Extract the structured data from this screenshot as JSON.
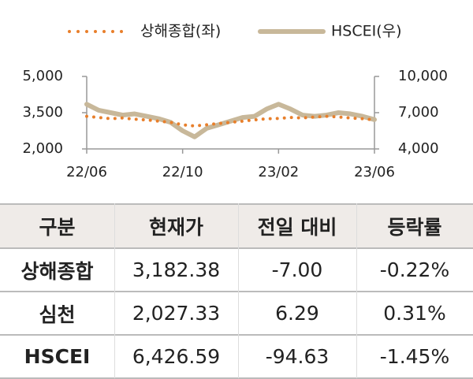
{
  "chart_data": {
    "type": "line",
    "categories": [
      "22/06",
      null,
      null,
      null,
      null,
      null,
      null,
      null,
      "22/10",
      null,
      null,
      null,
      null,
      null,
      null,
      null,
      "23/02",
      null,
      null,
      null,
      null,
      null,
      null,
      null,
      "23/06"
    ],
    "series": [
      {
        "name": "상해종합(좌)",
        "color": "#e87f2b",
        "axis": "y",
        "values": [
          3350,
          3300,
          3250,
          3280,
          3230,
          3200,
          3150,
          3100,
          3000,
          2950,
          3000,
          3050,
          3100,
          3150,
          3200,
          3250,
          3260,
          3300,
          3280,
          3320,
          3350,
          3320,
          3280,
          3250,
          3200
        ]
      },
      {
        "name": "HSCEI(우)",
        "color": "#c8b89a",
        "axis": "y2",
        "values": [
          7700,
          7200,
          7000,
          6800,
          6900,
          6700,
          6500,
          6200,
          5500,
          5000,
          5700,
          6000,
          6300,
          6600,
          6700,
          7300,
          7700,
          7300,
          6800,
          6700,
          6800,
          7000,
          6900,
          6700,
          6426
        ]
      }
    ],
    "ylim": [
      2000,
      5000
    ],
    "yticks": [
      {
        "value": 2000,
        "label": "2,000"
      },
      {
        "value": 3500,
        "label": "3,500"
      },
      {
        "value": 5000,
        "label": "5,000"
      }
    ],
    "y2lim": [
      4000,
      10000
    ],
    "y2ticks": [
      {
        "value": 4000,
        "label": "4,000"
      },
      {
        "value": 7000,
        "label": "7,000"
      },
      {
        "value": 10000,
        "label": "10,000"
      }
    ],
    "legend": "top",
    "grid": false
  },
  "table": {
    "columns": [
      "구분",
      "현재가",
      "전일 대비",
      "등락률"
    ],
    "rows": [
      [
        "상해종합",
        "3,182.38",
        "-7.00",
        "-0.22%"
      ],
      [
        "심천",
        "2,027.33",
        "6.29",
        "0.31%"
      ],
      [
        "HSCEI",
        "6,426.59",
        "-94.63",
        "-1.45%"
      ]
    ]
  }
}
